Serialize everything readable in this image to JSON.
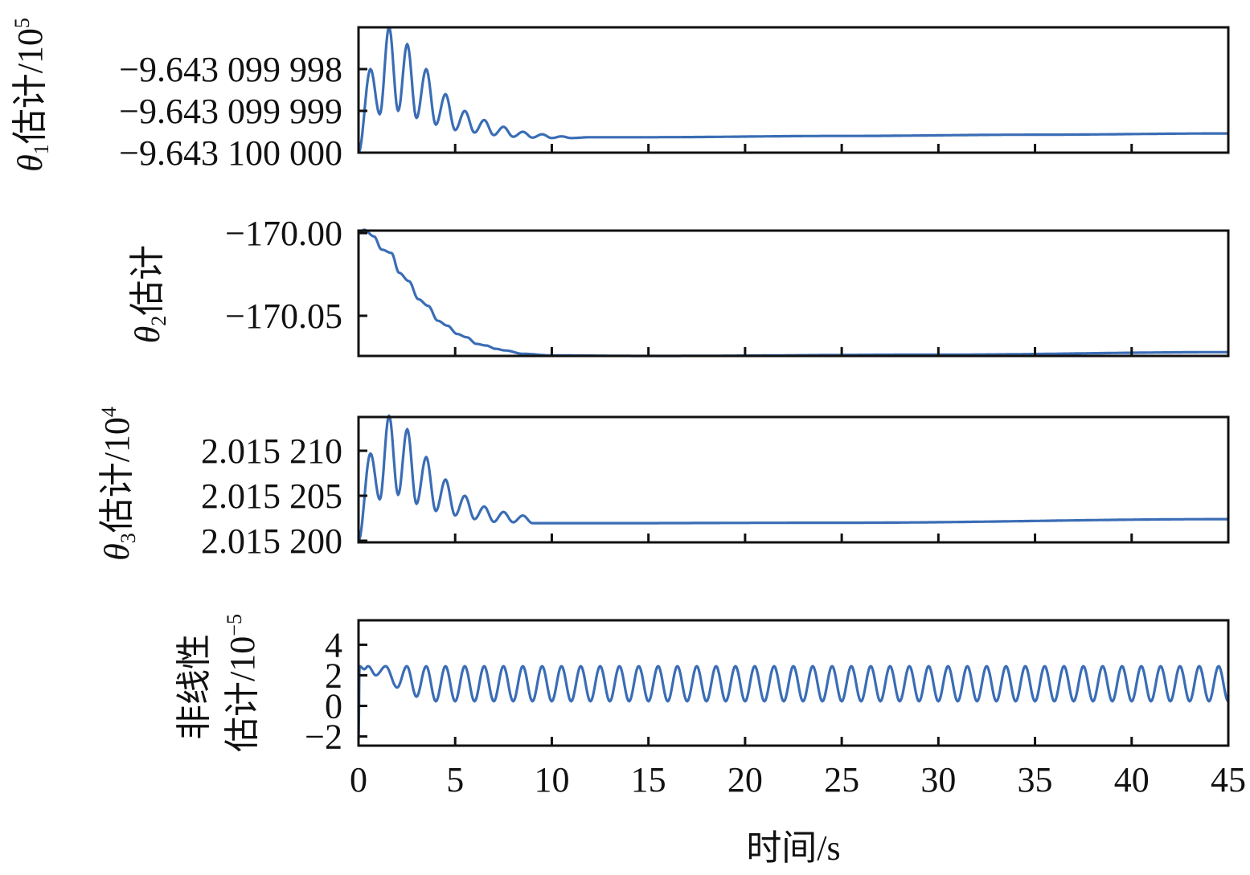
{
  "chart_data": [
    {
      "type": "line",
      "ylabel": {
        "symbol": "θ",
        "sub": "1",
        "text": "估计/10",
        "sup": "5"
      },
      "ylim": [
        -9.6431,
        -9.643099997
      ],
      "yticks": [
        {
          "value": -9.643099998,
          "label": "−9.643 099 998"
        },
        {
          "value": -9.643099999,
          "label": "−9.643 099 999"
        },
        {
          "value": -9.6431,
          "label": "−9.643 100 000"
        }
      ],
      "x": [
        0,
        0.62,
        1.1,
        1.58,
        2.05,
        2.52,
        3.0,
        3.5,
        4.0,
        4.5,
        5.0,
        5.5,
        6.0,
        6.5,
        7.0,
        7.5,
        8.0,
        8.5,
        9.0,
        9.5,
        10,
        10.5,
        11,
        12,
        15,
        25,
        35,
        45
      ],
      "y": [
        -9.6431,
        -9.643099998,
        -9.64309999908,
        -9.643099997,
        -9.643099999,
        -9.6430999974,
        -9.64309999917,
        -9.643099998,
        -9.64309999933,
        -9.6430999986,
        -9.64309999946,
        -9.643099999,
        -9.64309999952,
        -9.64309999922,
        -9.64309999958,
        -9.64309999938,
        -9.64309999962,
        -9.6430999995,
        -9.64309999964,
        -9.64309999956,
        -9.64309999965,
        -9.64309999961,
        -9.64309999965,
        -9.64309999963,
        -9.64309999963,
        -9.6430999996,
        -9.64309999957,
        -9.64309999954
      ]
    },
    {
      "type": "line",
      "ylabel": {
        "symbol": "θ",
        "sub": "2",
        "text": "估计"
      },
      "ylim": [
        -170.0743,
        -169.9985
      ],
      "yticks": [
        {
          "value": -170.0,
          "label": "−170.00"
        },
        {
          "value": -170.05,
          "label": "−170.05"
        }
      ],
      "x": [
        0,
        0.3,
        0.8,
        1.2,
        1.7,
        2.1,
        2.6,
        3.1,
        3.6,
        4.1,
        4.6,
        5.1,
        5.6,
        6.1,
        6.6,
        7.1,
        7.6,
        8.5,
        10,
        15,
        30,
        45
      ],
      "y": [
        -170.0,
        -169.998,
        -170.002,
        -170.01,
        -170.012,
        -170.024,
        -170.029,
        -170.04,
        -170.044,
        -170.053,
        -170.056,
        -170.061,
        -170.063,
        -170.067,
        -170.068,
        -170.07,
        -170.071,
        -170.073,
        -170.074,
        -170.0743,
        -170.0735,
        -170.072
      ]
    },
    {
      "type": "line",
      "ylabel": {
        "symbol": "θ",
        "sub": "3",
        "text": "估计/10",
        "sup": "4"
      },
      "ylim": [
        2.01519982,
        2.01521375
      ],
      "yticks": [
        {
          "value": 2.01521,
          "label": "2.015 210"
        },
        {
          "value": 2.015205,
          "label": "2.015 205"
        },
        {
          "value": 2.0152,
          "label": "2.015 200"
        }
      ],
      "x": [
        0,
        0.62,
        1.1,
        1.58,
        2.05,
        2.52,
        3.0,
        3.5,
        4.0,
        4.5,
        5.0,
        5.5,
        6.0,
        6.5,
        7.0,
        7.5,
        8.0,
        8.5,
        9.0,
        12,
        25,
        45
      ],
      "y": [
        2.0152,
        2.0152097,
        2.0152046,
        2.0152139,
        2.0152051,
        2.0152124,
        2.0152041,
        2.0152093,
        2.0152033,
        2.0152068,
        2.0152028,
        2.015205,
        2.0152024,
        2.0152038,
        2.0152021,
        2.0152032,
        2.01520205,
        2.0152028,
        2.01520195,
        2.01520195,
        2.015202,
        2.0152024
      ]
    },
    {
      "type": "line",
      "ylabel": {
        "line1": "非线性",
        "text": "估计/10",
        "sup": "−5"
      },
      "ylim": [
        -2.6,
        5.6
      ],
      "yticks": [
        {
          "value": 4,
          "label": "4"
        },
        {
          "value": 2,
          "label": "2"
        },
        {
          "value": 0,
          "label": "0"
        },
        {
          "value": -2,
          "label": "−2"
        }
      ],
      "x": [
        0,
        0.05,
        0.3,
        0.5,
        0.9,
        1.4,
        2.0,
        2.5,
        3.0
      ],
      "y": [
        -2.2,
        2.6,
        2.4,
        2.6,
        2.0,
        2.6,
        1.2,
        2.6,
        0.6
      ],
      "periodic_continuation": {
        "from": 3.5,
        "to": 45,
        "period": 1,
        "peak": 2.6,
        "trough": 0.3
      }
    }
  ],
  "xaxis": {
    "label": "时间/s",
    "xlim": [
      0,
      45
    ],
    "ticks": [
      {
        "value": 0,
        "label": "0"
      },
      {
        "value": 5,
        "label": "5"
      },
      {
        "value": 10,
        "label": "10"
      },
      {
        "value": 15,
        "label": "15"
      },
      {
        "value": 20,
        "label": "20"
      },
      {
        "value": 25,
        "label": "25"
      },
      {
        "value": 30,
        "label": "30"
      },
      {
        "value": 35,
        "label": "35"
      },
      {
        "value": 40,
        "label": "40"
      },
      {
        "value": 45,
        "label": "45"
      }
    ]
  }
}
